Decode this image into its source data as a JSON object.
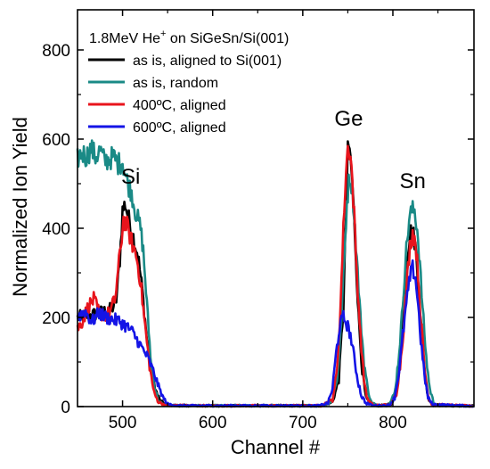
{
  "chart_data": {
    "type": "line",
    "title": "",
    "xlabel": "Channel #",
    "ylabel": "Normalized Ion Yield",
    "xlim": [
      450,
      890
    ],
    "ylim": [
      0,
      890
    ],
    "xticks": [
      500,
      600,
      700,
      800
    ],
    "yticks": [
      0,
      200,
      400,
      600,
      800
    ],
    "grid": false,
    "legend": {
      "placement": "top-left",
      "title_main": "1.8MeV He",
      "title_sup": "+",
      "title_rest": " on SiGeSn/Si(001)"
    },
    "annotations": [
      {
        "text": "Si",
        "x": 509,
        "y": 500
      },
      {
        "text": "Ge",
        "x": 751,
        "y": 630
      },
      {
        "text": "Sn",
        "x": 822,
        "y": 490
      }
    ],
    "series": [
      {
        "name": "as is, aligned to Si(001)",
        "color": "#000000",
        "points": [
          [
            450,
            200
          ],
          [
            465,
            205
          ],
          [
            478,
            212
          ],
          [
            488,
            218
          ],
          [
            493,
            240
          ],
          [
            497,
            330
          ],
          [
            500,
            440
          ],
          [
            503,
            455
          ],
          [
            507,
            420
          ],
          [
            512,
            380
          ],
          [
            517,
            340
          ],
          [
            522,
            260
          ],
          [
            527,
            150
          ],
          [
            532,
            80
          ],
          [
            537,
            35
          ],
          [
            542,
            12
          ],
          [
            550,
            3
          ],
          [
            580,
            2
          ],
          [
            680,
            2
          ],
          [
            720,
            2
          ],
          [
            733,
            10
          ],
          [
            740,
            60
          ],
          [
            745,
            220
          ],
          [
            748,
            430
          ],
          [
            750,
            570
          ],
          [
            752,
            580
          ],
          [
            755,
            500
          ],
          [
            758,
            380
          ],
          [
            762,
            200
          ],
          [
            766,
            80
          ],
          [
            770,
            20
          ],
          [
            775,
            5
          ],
          [
            785,
            2
          ],
          [
            798,
            5
          ],
          [
            804,
            40
          ],
          [
            808,
            130
          ],
          [
            812,
            240
          ],
          [
            816,
            340
          ],
          [
            819,
            390
          ],
          [
            822,
            395
          ],
          [
            825,
            360
          ],
          [
            828,
            280
          ],
          [
            832,
            160
          ],
          [
            836,
            60
          ],
          [
            840,
            15
          ],
          [
            845,
            3
          ],
          [
            890,
            1
          ]
        ]
      },
      {
        "name": "as is, random",
        "color": "#1a8a86",
        "points": [
          [
            450,
            555
          ],
          [
            455,
            570
          ],
          [
            460,
            560
          ],
          [
            465,
            580
          ],
          [
            470,
            560
          ],
          [
            475,
            575
          ],
          [
            480,
            550
          ],
          [
            485,
            555
          ],
          [
            490,
            560
          ],
          [
            495,
            545
          ],
          [
            500,
            550
          ],
          [
            503,
            520
          ],
          [
            506,
            500
          ],
          [
            510,
            480
          ],
          [
            514,
            440
          ],
          [
            517,
            420
          ],
          [
            520,
            400
          ],
          [
            523,
            350
          ],
          [
            526,
            260
          ],
          [
            529,
            170
          ],
          [
            532,
            90
          ],
          [
            536,
            40
          ],
          [
            540,
            12
          ],
          [
            545,
            4
          ],
          [
            560,
            2
          ],
          [
            700,
            2
          ],
          [
            720,
            2
          ],
          [
            732,
            10
          ],
          [
            738,
            60
          ],
          [
            742,
            160
          ],
          [
            746,
            330
          ],
          [
            749,
            460
          ],
          [
            752,
            520
          ],
          [
            755,
            490
          ],
          [
            758,
            400
          ],
          [
            761,
            300
          ],
          [
            764,
            200
          ],
          [
            768,
            100
          ],
          [
            772,
            40
          ],
          [
            776,
            10
          ],
          [
            782,
            3
          ],
          [
            796,
            5
          ],
          [
            802,
            30
          ],
          [
            806,
            100
          ],
          [
            810,
            200
          ],
          [
            814,
            330
          ],
          [
            818,
            420
          ],
          [
            821,
            440
          ],
          [
            824,
            440
          ],
          [
            827,
            400
          ],
          [
            830,
            320
          ],
          [
            833,
            220
          ],
          [
            837,
            110
          ],
          [
            841,
            40
          ],
          [
            845,
            10
          ],
          [
            850,
            3
          ],
          [
            890,
            1
          ]
        ]
      },
      {
        "name": "400ºC, aligned",
        "color": "#e8141c",
        "points": [
          [
            450,
            175
          ],
          [
            455,
            190
          ],
          [
            462,
            225
          ],
          [
            468,
            240
          ],
          [
            474,
            210
          ],
          [
            480,
            205
          ],
          [
            486,
            210
          ],
          [
            492,
            245
          ],
          [
            497,
            340
          ],
          [
            501,
            420
          ],
          [
            505,
            405
          ],
          [
            510,
            370
          ],
          [
            515,
            340
          ],
          [
            520,
            280
          ],
          [
            525,
            180
          ],
          [
            530,
            90
          ],
          [
            535,
            30
          ],
          [
            540,
            10
          ],
          [
            548,
            3
          ],
          [
            600,
            2
          ],
          [
            700,
            2
          ],
          [
            720,
            2
          ],
          [
            733,
            15
          ],
          [
            738,
            80
          ],
          [
            742,
            230
          ],
          [
            746,
            450
          ],
          [
            749,
            560
          ],
          [
            751,
            590
          ],
          [
            754,
            540
          ],
          [
            757,
            430
          ],
          [
            760,
            300
          ],
          [
            764,
            160
          ],
          [
            768,
            60
          ],
          [
            772,
            15
          ],
          [
            778,
            3
          ],
          [
            798,
            4
          ],
          [
            804,
            30
          ],
          [
            808,
            90
          ],
          [
            812,
            180
          ],
          [
            816,
            290
          ],
          [
            819,
            360
          ],
          [
            822,
            390
          ],
          [
            825,
            370
          ],
          [
            828,
            300
          ],
          [
            831,
            200
          ],
          [
            835,
            90
          ],
          [
            839,
            25
          ],
          [
            843,
            5
          ],
          [
            890,
            1
          ]
        ]
      },
      {
        "name": "600ºC, aligned",
        "color": "#1414e6",
        "points": [
          [
            450,
            200
          ],
          [
            458,
            215
          ],
          [
            466,
            190
          ],
          [
            474,
            210
          ],
          [
            482,
            200
          ],
          [
            490,
            195
          ],
          [
            498,
            190
          ],
          [
            504,
            180
          ],
          [
            510,
            170
          ],
          [
            516,
            150
          ],
          [
            522,
            130
          ],
          [
            528,
            110
          ],
          [
            534,
            80
          ],
          [
            540,
            45
          ],
          [
            545,
            20
          ],
          [
            550,
            6
          ],
          [
            560,
            2
          ],
          [
            700,
            2
          ],
          [
            718,
            2
          ],
          [
            728,
            8
          ],
          [
            733,
            40
          ],
          [
            737,
            120
          ],
          [
            741,
            180
          ],
          [
            745,
            200
          ],
          [
            749,
            185
          ],
          [
            753,
            160
          ],
          [
            757,
            110
          ],
          [
            761,
            60
          ],
          [
            765,
            25
          ],
          [
            770,
            8
          ],
          [
            778,
            2
          ],
          [
            796,
            3
          ],
          [
            802,
            20
          ],
          [
            807,
            80
          ],
          [
            811,
            160
          ],
          [
            815,
            230
          ],
          [
            819,
            290
          ],
          [
            822,
            310
          ],
          [
            825,
            290
          ],
          [
            828,
            230
          ],
          [
            831,
            150
          ],
          [
            835,
            70
          ],
          [
            839,
            20
          ],
          [
            844,
            5
          ],
          [
            890,
            1
          ]
        ]
      }
    ]
  }
}
